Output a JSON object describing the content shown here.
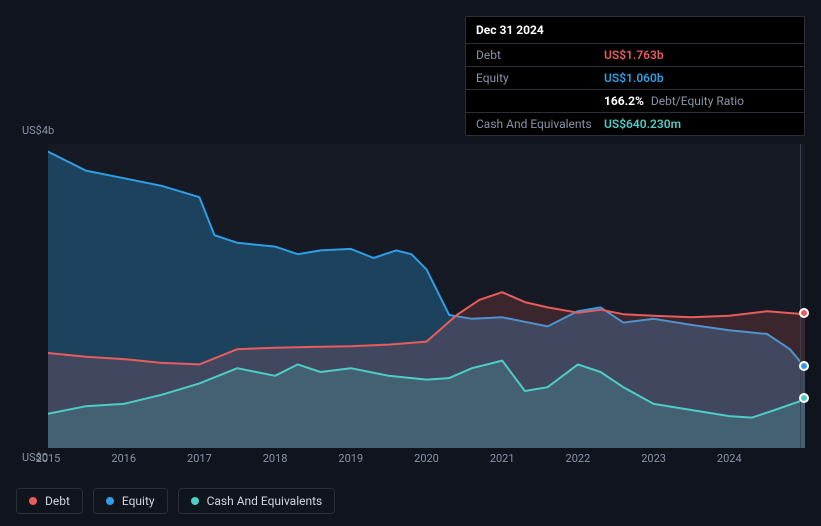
{
  "tooltip": {
    "title": "Dec 31 2024",
    "rows": [
      {
        "label": "Debt",
        "value": "US$1.763b",
        "color": "#e85c5c"
      },
      {
        "label": "Equity",
        "value": "US$1.060b",
        "color": "#2e9fe6"
      },
      {
        "label": "",
        "value_pct": "166.2%",
        "value_label": "Debt/Equity Ratio",
        "color": "#ffffff"
      },
      {
        "label": "Cash And Equivalents",
        "value": "US$640.230m",
        "color": "#4ecdc4"
      }
    ]
  },
  "chart": {
    "type": "area",
    "background_color": "#151a24",
    "page_background": "#10141c",
    "grid_color": "#2a2f3a",
    "y": {
      "min": 0,
      "max": 4,
      "labels": {
        "top": "US$4b",
        "bottom": "US$0"
      },
      "label_color": "#8a93a6",
      "label_fontsize": 11
    },
    "x": {
      "min": 2015,
      "max": 2025,
      "ticks": [
        2015,
        2016,
        2017,
        2018,
        2019,
        2020,
        2021,
        2022,
        2023,
        2024
      ],
      "label_color": "#8a93a6",
      "label_fontsize": 11
    },
    "series": [
      {
        "name": "Debt",
        "color": "#e85c5c",
        "fill_opacity": 0.18,
        "line_width": 2,
        "points": [
          [
            2015.0,
            1.25
          ],
          [
            2015.5,
            1.2
          ],
          [
            2016.0,
            1.17
          ],
          [
            2016.5,
            1.12
          ],
          [
            2017.0,
            1.1
          ],
          [
            2017.5,
            1.3
          ],
          [
            2018.0,
            1.32
          ],
          [
            2018.5,
            1.33
          ],
          [
            2019.0,
            1.34
          ],
          [
            2019.5,
            1.36
          ],
          [
            2020.0,
            1.4
          ],
          [
            2020.4,
            1.75
          ],
          [
            2020.7,
            1.95
          ],
          [
            2021.0,
            2.05
          ],
          [
            2021.3,
            1.92
          ],
          [
            2021.6,
            1.85
          ],
          [
            2022.0,
            1.78
          ],
          [
            2022.3,
            1.82
          ],
          [
            2022.6,
            1.76
          ],
          [
            2023.0,
            1.74
          ],
          [
            2023.5,
            1.72
          ],
          [
            2024.0,
            1.74
          ],
          [
            2024.5,
            1.8
          ],
          [
            2025.0,
            1.76
          ]
        ]
      },
      {
        "name": "Equity",
        "color": "#2e9fe6",
        "fill_opacity": 0.3,
        "line_width": 2,
        "points": [
          [
            2015.0,
            3.9
          ],
          [
            2015.5,
            3.65
          ],
          [
            2016.0,
            3.55
          ],
          [
            2016.5,
            3.45
          ],
          [
            2017.0,
            3.3
          ],
          [
            2017.2,
            2.8
          ],
          [
            2017.5,
            2.7
          ],
          [
            2018.0,
            2.65
          ],
          [
            2018.3,
            2.55
          ],
          [
            2018.6,
            2.6
          ],
          [
            2019.0,
            2.62
          ],
          [
            2019.3,
            2.5
          ],
          [
            2019.6,
            2.6
          ],
          [
            2019.8,
            2.55
          ],
          [
            2020.0,
            2.35
          ],
          [
            2020.3,
            1.75
          ],
          [
            2020.6,
            1.7
          ],
          [
            2021.0,
            1.72
          ],
          [
            2021.3,
            1.66
          ],
          [
            2021.6,
            1.6
          ],
          [
            2022.0,
            1.8
          ],
          [
            2022.3,
            1.85
          ],
          [
            2022.6,
            1.65
          ],
          [
            2023.0,
            1.7
          ],
          [
            2023.5,
            1.62
          ],
          [
            2024.0,
            1.55
          ],
          [
            2024.5,
            1.5
          ],
          [
            2024.8,
            1.3
          ],
          [
            2025.0,
            1.06
          ]
        ]
      },
      {
        "name": "Cash And Equivalents",
        "color": "#4ecdc4",
        "fill_opacity": 0.2,
        "line_width": 2,
        "points": [
          [
            2015.0,
            0.45
          ],
          [
            2015.5,
            0.55
          ],
          [
            2016.0,
            0.58
          ],
          [
            2016.5,
            0.7
          ],
          [
            2017.0,
            0.85
          ],
          [
            2017.5,
            1.05
          ],
          [
            2018.0,
            0.95
          ],
          [
            2018.3,
            1.1
          ],
          [
            2018.6,
            1.0
          ],
          [
            2019.0,
            1.05
          ],
          [
            2019.5,
            0.95
          ],
          [
            2020.0,
            0.9
          ],
          [
            2020.3,
            0.92
          ],
          [
            2020.6,
            1.05
          ],
          [
            2021.0,
            1.15
          ],
          [
            2021.3,
            0.75
          ],
          [
            2021.6,
            0.8
          ],
          [
            2022.0,
            1.1
          ],
          [
            2022.3,
            1.0
          ],
          [
            2022.6,
            0.8
          ],
          [
            2023.0,
            0.58
          ],
          [
            2023.5,
            0.5
          ],
          [
            2024.0,
            0.42
          ],
          [
            2024.3,
            0.4
          ],
          [
            2024.6,
            0.5
          ],
          [
            2025.0,
            0.64
          ]
        ]
      }
    ],
    "end_markers": [
      {
        "series": "Debt",
        "x": 2025.0,
        "y": 1.76,
        "color": "#e85c5c"
      },
      {
        "series": "Equity",
        "x": 2025.0,
        "y": 1.06,
        "color": "#2e9fe6"
      },
      {
        "series": "Cash And Equivalents",
        "x": 2025.0,
        "y": 0.64,
        "color": "#4ecdc4"
      }
    ]
  },
  "legend": {
    "items": [
      {
        "label": "Debt",
        "color": "#e85c5c"
      },
      {
        "label": "Equity",
        "color": "#2e9fe6"
      },
      {
        "label": "Cash And Equivalents",
        "color": "#4ecdc4"
      }
    ]
  }
}
